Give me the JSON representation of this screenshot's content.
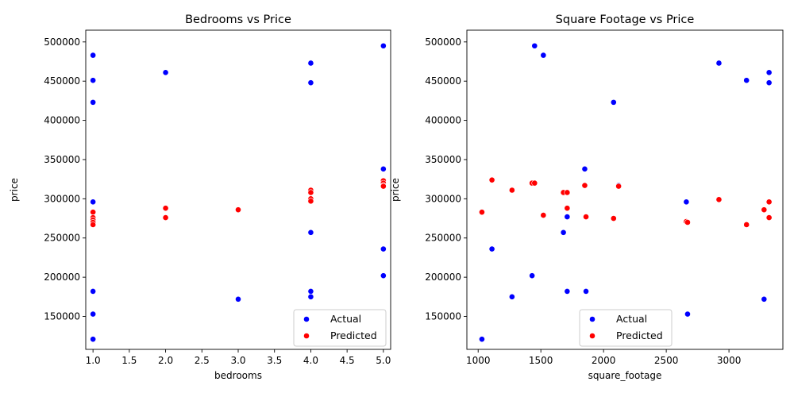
{
  "chart_data": [
    {
      "type": "scatter",
      "title": "Bedrooms vs Price",
      "xlabel": "bedrooms",
      "ylabel": "price",
      "xlim": [
        0.9,
        5.1
      ],
      "ylim": [
        108000,
        515000
      ],
      "xticks": [
        "1.0",
        "1.5",
        "2.0",
        "2.5",
        "3.0",
        "3.5",
        "4.0",
        "4.5",
        "5.0"
      ],
      "xtick_values": [
        1.0,
        1.5,
        2.0,
        2.5,
        3.0,
        3.5,
        4.0,
        4.5,
        5.0
      ],
      "yticks": [
        "150000",
        "200000",
        "250000",
        "300000",
        "350000",
        "400000",
        "450000",
        "500000"
      ],
      "ytick_values": [
        150000,
        200000,
        250000,
        300000,
        350000,
        400000,
        450000,
        500000
      ],
      "legend_position": "lower-right",
      "grid": false,
      "series": [
        {
          "name": "Actual",
          "color": "#0000ff",
          "points": [
            [
              1,
              483000
            ],
            [
              1,
              451000
            ],
            [
              1,
              423000
            ],
            [
              1,
              296000
            ],
            [
              1,
              182000
            ],
            [
              1,
              153000
            ],
            [
              1,
              121000
            ],
            [
              2,
              461000
            ],
            [
              3,
              172000
            ],
            [
              4,
              473000
            ],
            [
              4,
              448000
            ],
            [
              4,
              257000
            ],
            [
              4,
              182000
            ],
            [
              4,
              175000
            ],
            [
              5,
              495000
            ],
            [
              5,
              338000
            ],
            [
              5,
              236000
            ],
            [
              5,
              202000
            ]
          ]
        },
        {
          "name": "Predicted",
          "color": "#ff0000",
          "points": [
            [
              1,
              283000
            ],
            [
              1,
              276000
            ],
            [
              1,
              273000
            ],
            [
              1,
              270000
            ],
            [
              1,
              267000
            ],
            [
              2,
              288000
            ],
            [
              2,
              276000
            ],
            [
              3,
              286000
            ],
            [
              4,
              311000
            ],
            [
              4,
              308000
            ],
            [
              4,
              300000
            ],
            [
              4,
              297000
            ],
            [
              5,
              323000
            ],
            [
              5,
              320000
            ],
            [
              5,
              317000
            ],
            [
              5,
              316000
            ]
          ]
        }
      ]
    },
    {
      "type": "scatter",
      "title": "Square Footage vs Price",
      "xlabel": "square_footage",
      "ylabel": "price",
      "xlim": [
        910,
        3430
      ],
      "ylim": [
        108000,
        515000
      ],
      "xticks": [
        "1000",
        "1500",
        "2000",
        "2500",
        "3000"
      ],
      "xtick_values": [
        1000,
        1500,
        2000,
        2500,
        3000
      ],
      "yticks": [
        "150000",
        "200000",
        "250000",
        "300000",
        "350000",
        "400000",
        "450000",
        "500000"
      ],
      "ytick_values": [
        150000,
        200000,
        250000,
        300000,
        350000,
        400000,
        450000,
        500000
      ],
      "legend_position": "lower-center",
      "grid": false,
      "series": [
        {
          "name": "Actual",
          "color": "#0000ff",
          "points": [
            [
              1450,
              495000
            ],
            [
              1520,
              483000
            ],
            [
              2920,
              473000
            ],
            [
              3320,
              461000
            ],
            [
              3140,
              451000
            ],
            [
              3320,
              448000
            ],
            [
              2080,
              423000
            ],
            [
              1850,
              338000
            ],
            [
              2120,
              317000
            ],
            [
              2660,
              296000
            ],
            [
              1710,
              277000
            ],
            [
              1680,
              257000
            ],
            [
              1110,
              236000
            ],
            [
              1430,
              202000
            ],
            [
              1710,
              182000
            ],
            [
              1860,
              182000
            ],
            [
              1270,
              175000
            ],
            [
              3280,
              172000
            ],
            [
              2670,
              153000
            ],
            [
              1030,
              121000
            ]
          ]
        },
        {
          "name": "Predicted",
          "color": "#ff0000",
          "points": [
            [
              1110,
              324000
            ],
            [
              1430,
              320000
            ],
            [
              1450,
              320000
            ],
            [
              2120,
              316000
            ],
            [
              1850,
              317000
            ],
            [
              1270,
              311000
            ],
            [
              1680,
              308000
            ],
            [
              1710,
              308000
            ],
            [
              2920,
              299000
            ],
            [
              3320,
              296000
            ],
            [
              1710,
              288000
            ],
            [
              3280,
              286000
            ],
            [
              1030,
              283000
            ],
            [
              1520,
              279000
            ],
            [
              1860,
              277000
            ],
            [
              3320,
              276000
            ],
            [
              2080,
              275000
            ],
            [
              2660,
              271000
            ],
            [
              2670,
              270000
            ],
            [
              3140,
              267000
            ]
          ]
        }
      ]
    }
  ]
}
